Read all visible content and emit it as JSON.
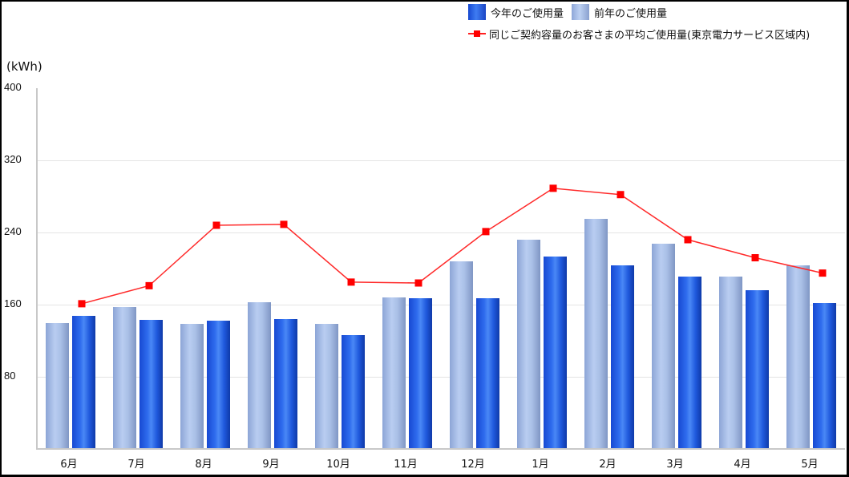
{
  "chart_data": {
    "type": "bar",
    "title": "",
    "xlabel": "",
    "ylabel": "(kWh)",
    "ylim": [
      0,
      400
    ],
    "yticks": [
      80,
      160,
      240,
      320,
      400
    ],
    "grid": true,
    "legend_position": "top-right",
    "categories": [
      "6月",
      "7月",
      "8月",
      "9月",
      "10月",
      "11月",
      "12月",
      "1月",
      "2月",
      "3月",
      "4月",
      "5月"
    ],
    "series": [
      {
        "name": "前年のご使用量",
        "type": "bar",
        "color": "#a9bfe6",
        "values": [
          140,
          157,
          139,
          163,
          139,
          168,
          208,
          232,
          255,
          228,
          191,
          204
        ]
      },
      {
        "name": "今年のご使用量",
        "type": "bar",
        "color": "#1f58dc",
        "values": [
          148,
          143,
          142,
          144,
          126,
          167,
          167,
          213,
          204,
          191,
          176,
          162
        ]
      },
      {
        "name": "同じご契約容量のお客さまの平均ご使用量(東京電力サービス区域内)",
        "type": "line",
        "color": "#ff0000",
        "values": [
          161,
          181,
          248,
          249,
          185,
          184,
          241,
          289,
          282,
          232,
          212,
          195
        ]
      }
    ]
  },
  "legend": {
    "current": "今年のご使用量",
    "previous": "前年のご使用量",
    "average": "同じご契約容量のお客さまの平均ご使用量(東京電力サービス区域内)"
  },
  "axis": {
    "unit": "(kWh)",
    "yticks": [
      "400",
      "320",
      "240",
      "160",
      "80"
    ]
  }
}
